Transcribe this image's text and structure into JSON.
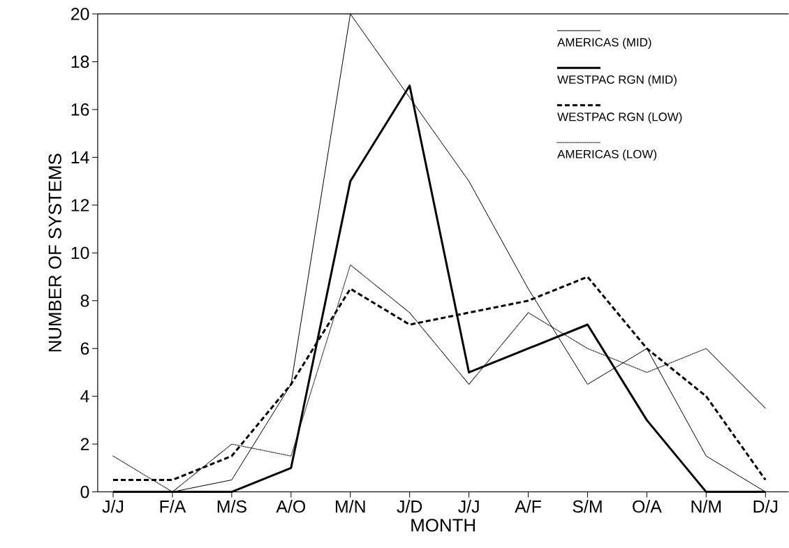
{
  "chart_data": {
    "type": "line",
    "xlabel": "MONTH",
    "ylabel": "NUMBER OF SYSTEMS",
    "categories": [
      "J/J",
      "F/A",
      "M/S",
      "A/O",
      "M/N",
      "J/D",
      "J/J",
      "A/F",
      "S/M",
      "O/A",
      "N/M",
      "D/J"
    ],
    "series": [
      {
        "name": "AMERICAS (MID)",
        "color": "#000000",
        "line_style": "solid",
        "values": [
          0,
          0,
          0.5,
          4.5,
          20,
          16.5,
          13,
          8.5,
          4.5,
          6,
          1.5,
          0
        ]
      },
      {
        "name": "WESTPAC RGN (MID)",
        "color": "#000000",
        "line_style": "solid",
        "values": [
          0,
          0,
          0,
          1,
          13,
          17,
          5,
          6,
          7,
          3,
          0,
          0
        ]
      },
      {
        "name": "WESTPAC RGN (LOW)",
        "color": "#000000",
        "line_style": "dashed",
        "values": [
          0.5,
          0.5,
          1.5,
          4.5,
          8.5,
          7,
          7.5,
          8,
          9,
          6,
          4,
          0.5
        ]
      },
      {
        "name": "AMERICAS (LOW)",
        "color": "#000000",
        "line_style": "dotted",
        "values": [
          1.5,
          0,
          2,
          1.5,
          9.5,
          7.5,
          4.5,
          7.5,
          6,
          5,
          6,
          3.5
        ]
      }
    ],
    "ylim": [
      0,
      20
    ],
    "yticks": [
      0,
      2,
      4,
      6,
      8,
      10,
      12,
      14,
      16,
      18,
      20
    ],
    "grid": false,
    "legend": "top right",
    "marker": "none"
  }
}
